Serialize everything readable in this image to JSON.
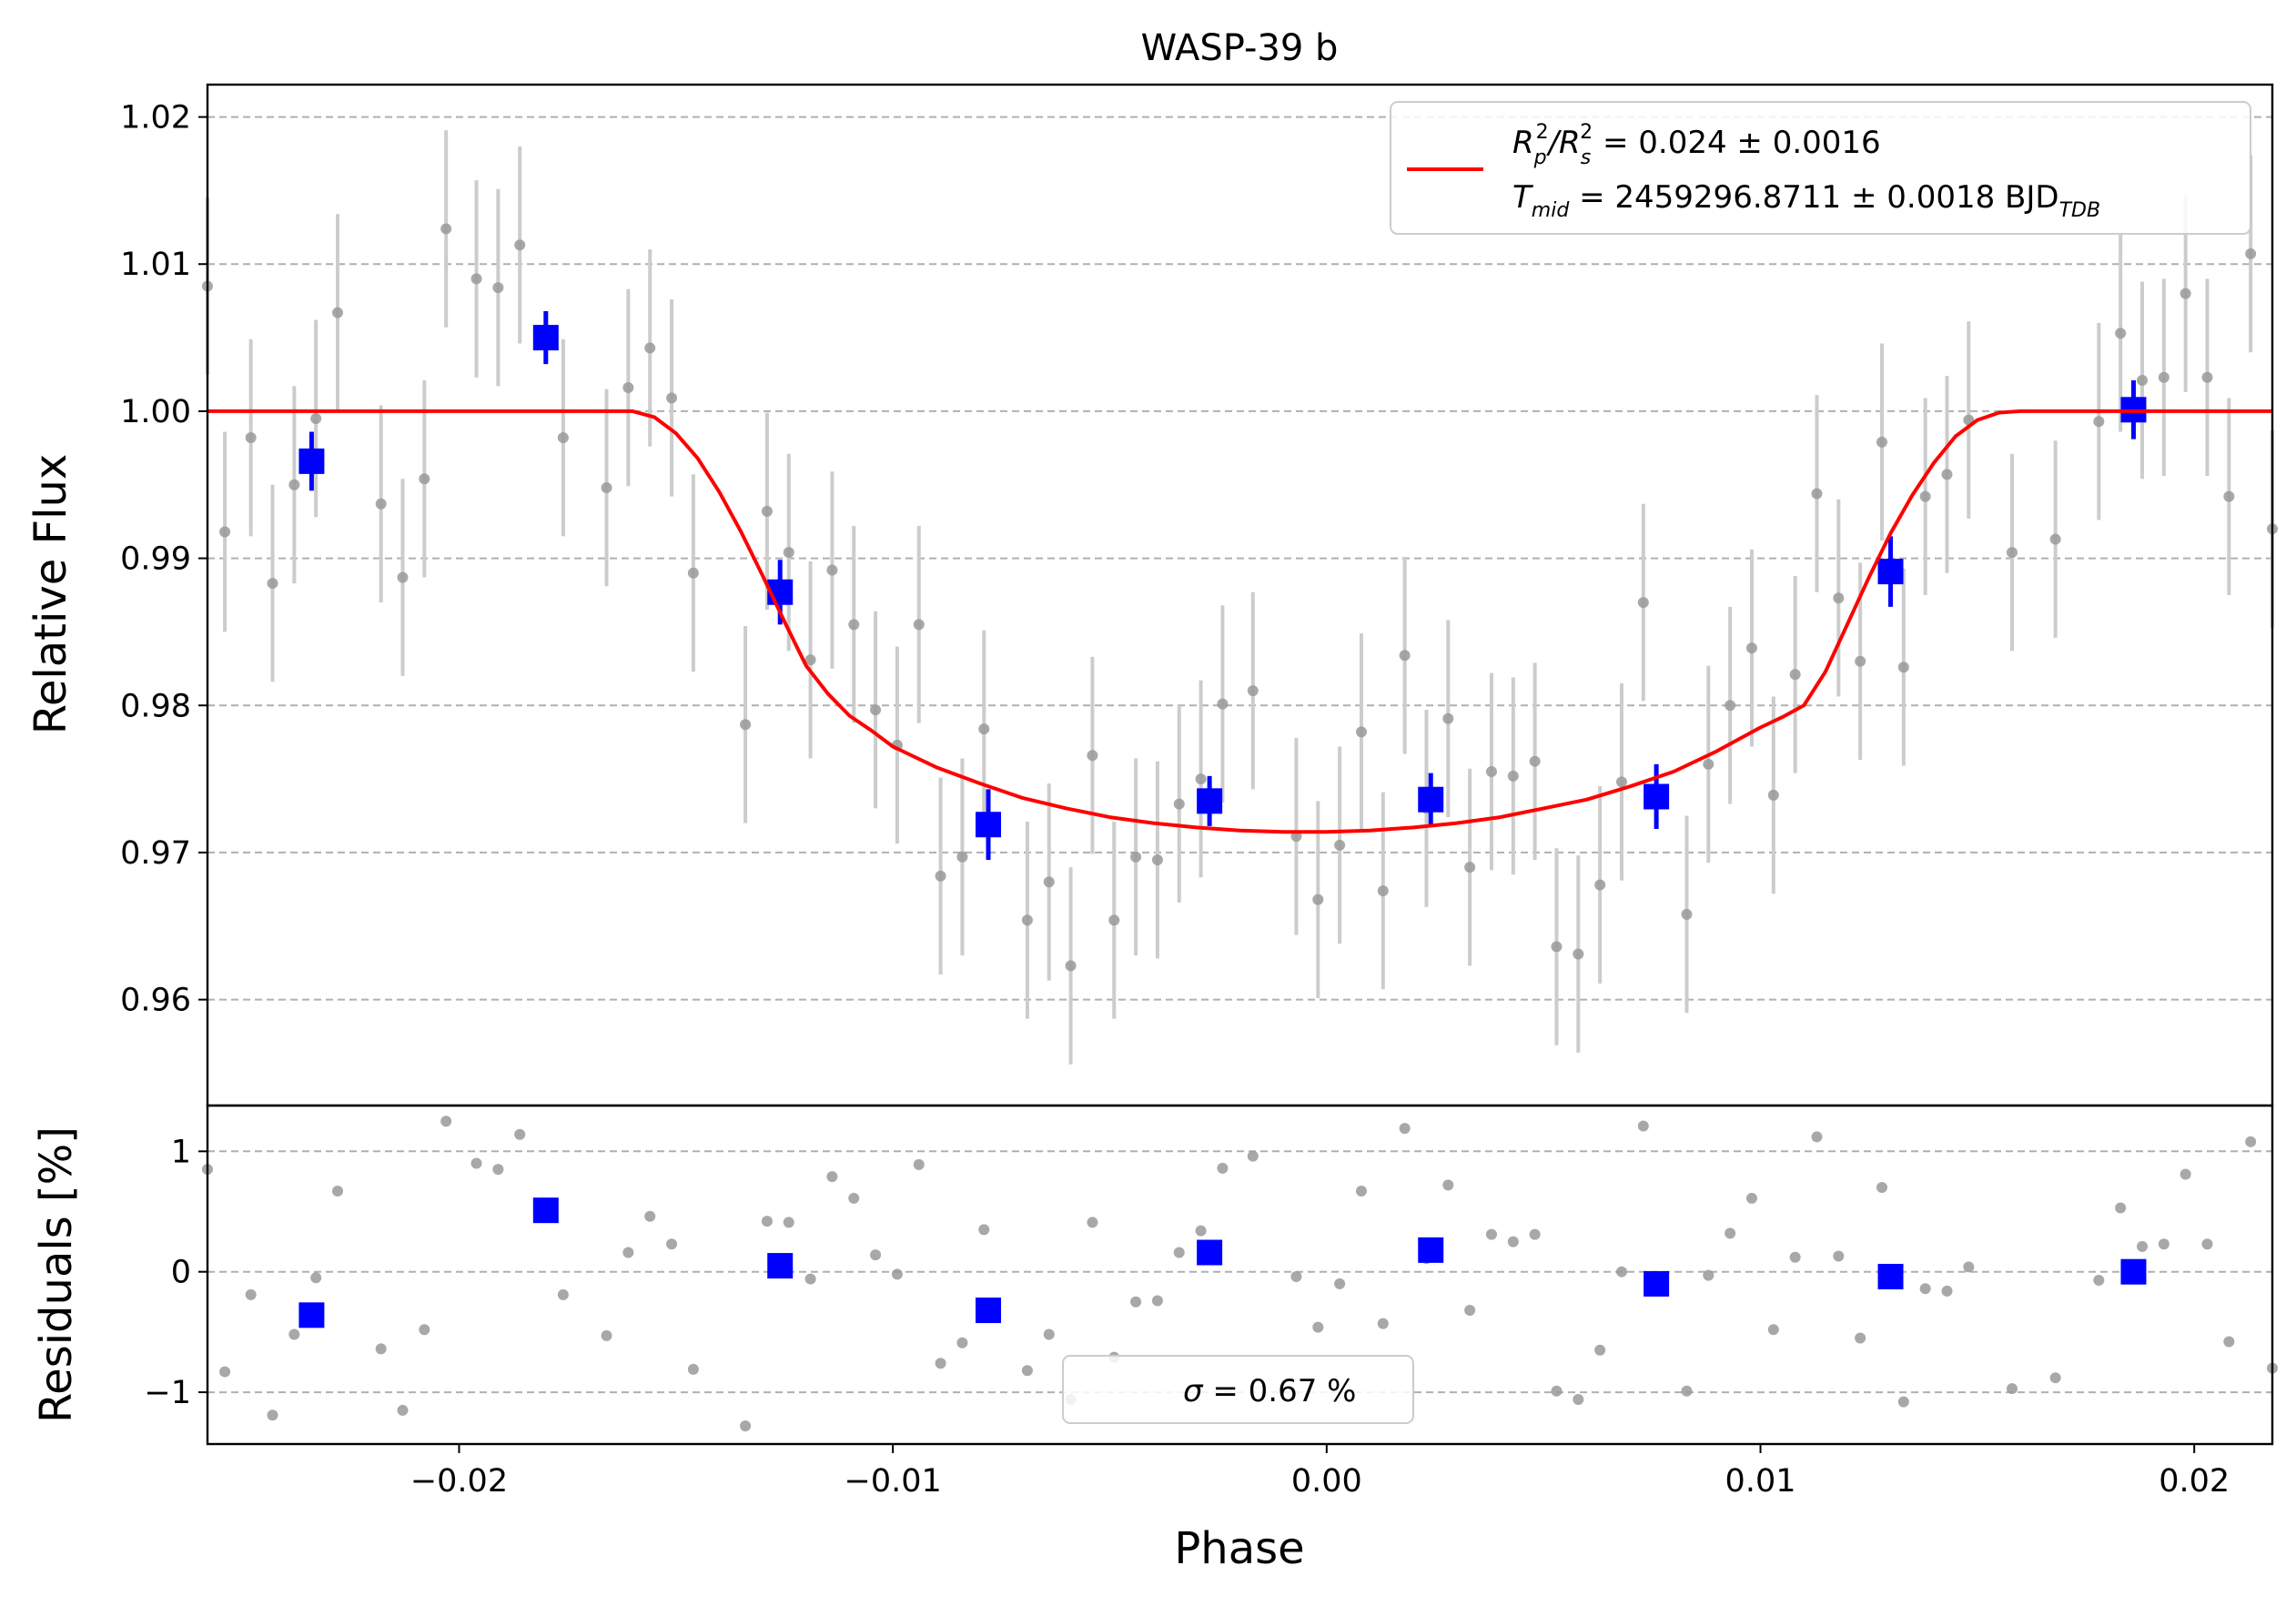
{
  "chart_data": {
    "type": "scatter",
    "title": "WASP-39 b",
    "xlabel": "Phase",
    "xlim": [
      -0.0258,
      0.0218
    ],
    "x_ticks": [
      {
        "value": -0.02,
        "label": "−0.02"
      },
      {
        "value": -0.01,
        "label": "−0.01"
      },
      {
        "value": 0.0,
        "label": "0.00"
      },
      {
        "value": 0.01,
        "label": "0.01"
      },
      {
        "value": 0.02,
        "label": "0.02"
      }
    ],
    "panels": {
      "flux": {
        "ylabel": "Relative Flux",
        "ylim": [
          0.9528,
          1.0222
        ],
        "y_ticks": [
          {
            "value": 0.96,
            "label": "0.96"
          },
          {
            "value": 0.97,
            "label": "0.97"
          },
          {
            "value": 0.98,
            "label": "0.98"
          },
          {
            "value": 0.99,
            "label": "0.99"
          },
          {
            "value": 1.0,
            "label": "1.00"
          },
          {
            "value": 1.01,
            "label": "1.01"
          },
          {
            "value": 1.02,
            "label": "1.02"
          }
        ],
        "grid": "horizontal dashed"
      },
      "residuals": {
        "ylabel": "Residuals [%]",
        "ylim": [
          -1.43,
          1.38
        ],
        "y_ticks": [
          {
            "value": -1,
            "label": "−1"
          },
          {
            "value": 0,
            "label": "0"
          },
          {
            "value": 1,
            "label": "1"
          }
        ],
        "grid": "horizontal dashed"
      }
    },
    "colors": {
      "raw": "#999999",
      "raw_errorbar": "#cccccc",
      "binned": "#0000ff",
      "model": "#ff0000",
      "grid": "#b0b0b0"
    },
    "legend": {
      "position": "top-right",
      "line1": {
        "prefix": "R",
        "sub1": "p",
        "sup1": "2",
        "slash": "/R",
        "sub2": "s",
        "sup2": "2",
        "rest": " = 0.024 ± 0.0016"
      },
      "line2": {
        "prefix": "T",
        "sub1": "mid",
        "rest": " = 2459296.8711 ± 0.0018 BJD",
        "sub2": "TDB"
      }
    },
    "residual_legend": {
      "position": "bottom-center",
      "sigma_symbol": "σ",
      "text": " = 0.67 %"
    },
    "model": {
      "name": "transit model",
      "x": [
        -0.0258,
        -0.016,
        -0.0155,
        -0.015,
        -0.0145,
        -0.014,
        -0.0135,
        -0.013,
        -0.0125,
        -0.012,
        -0.0115,
        -0.011,
        -0.0105,
        -0.01,
        -0.009,
        -0.008,
        -0.007,
        -0.006,
        -0.005,
        -0.004,
        -0.003,
        -0.002,
        -0.001,
        0.0,
        0.001,
        0.002,
        0.003,
        0.004,
        0.005,
        0.006,
        0.007,
        0.008,
        0.009,
        0.0095,
        0.01,
        0.0105,
        0.011,
        0.0115,
        0.012,
        0.0125,
        0.013,
        0.0135,
        0.014,
        0.0145,
        0.015,
        0.0155,
        0.016,
        0.0218
      ],
      "y": [
        1.0,
        1.0,
        0.9996,
        0.9985,
        0.9968,
        0.9945,
        0.9918,
        0.9888,
        0.9857,
        0.9827,
        0.9808,
        0.9793,
        0.9783,
        0.9772,
        0.9758,
        0.9747,
        0.9737,
        0.973,
        0.9724,
        0.972,
        0.9717,
        0.9715,
        0.9714,
        0.9714,
        0.9715,
        0.9717,
        0.972,
        0.9724,
        0.973,
        0.9736,
        0.9745,
        0.9755,
        0.9769,
        0.9777,
        0.9785,
        0.9792,
        0.98,
        0.9823,
        0.9855,
        0.9887,
        0.9917,
        0.9943,
        0.9965,
        0.9983,
        0.9994,
        0.9999,
        1.0,
        1.0
      ]
    },
    "raw_points": [
      {
        "x": -0.0258,
        "y": 1.0085,
        "err": 0.006,
        "res": 0.85
      },
      {
        "x": -0.0254,
        "y": 0.9918,
        "err": 0.0068,
        "res": -0.83
      },
      {
        "x": -0.0248,
        "y": 0.9982,
        "err": 0.0067,
        "res": -0.19
      },
      {
        "x": -0.0243,
        "y": 0.9883,
        "err": 0.0067,
        "res": -1.19
      },
      {
        "x": -0.0238,
        "y": 0.995,
        "err": 0.0067,
        "res": -0.52
      },
      {
        "x": -0.0233,
        "y": 0.9995,
        "err": 0.0067,
        "res": -0.05
      },
      {
        "x": -0.0228,
        "y": 1.0067,
        "err": 0.0067,
        "res": 0.67
      },
      {
        "x": -0.0218,
        "y": 0.9937,
        "err": 0.0067,
        "res": -0.64
      },
      {
        "x": -0.0213,
        "y": 0.9887,
        "err": 0.0067,
        "res": -1.15
      },
      {
        "x": -0.0208,
        "y": 0.9954,
        "err": 0.0067,
        "res": -0.48
      },
      {
        "x": -0.0203,
        "y": 1.0124,
        "err": 0.0067,
        "res": 1.25
      },
      {
        "x": -0.0196,
        "y": 1.009,
        "err": 0.0067,
        "res": 0.9
      },
      {
        "x": -0.0191,
        "y": 1.0084,
        "err": 0.0067,
        "res": 0.85
      },
      {
        "x": -0.0186,
        "y": 1.0113,
        "err": 0.0067,
        "res": 1.14
      },
      {
        "x": -0.0176,
        "y": 0.9982,
        "err": 0.0067,
        "res": -0.19
      },
      {
        "x": -0.0166,
        "y": 0.9948,
        "err": 0.0067,
        "res": -0.53
      },
      {
        "x": -0.0161,
        "y": 1.0016,
        "err": 0.0067,
        "res": 0.16
      },
      {
        "x": -0.0156,
        "y": 1.0043,
        "err": 0.0067,
        "res": 0.46
      },
      {
        "x": -0.0151,
        "y": 1.0009,
        "err": 0.0067,
        "res": 0.23
      },
      {
        "x": -0.0146,
        "y": 0.989,
        "err": 0.0067,
        "res": -0.81
      },
      {
        "x": -0.0134,
        "y": 0.9787,
        "err": 0.0067,
        "res": -1.28
      },
      {
        "x": -0.0129,
        "y": 0.9932,
        "err": 0.0067,
        "res": 0.42
      },
      {
        "x": -0.0124,
        "y": 0.9904,
        "err": 0.0067,
        "res": 0.41
      },
      {
        "x": -0.0119,
        "y": 0.9831,
        "err": 0.0067,
        "res": -0.06
      },
      {
        "x": -0.0114,
        "y": 0.9892,
        "err": 0.0067,
        "res": 0.79
      },
      {
        "x": -0.0109,
        "y": 0.9855,
        "err": 0.0067,
        "res": 0.61
      },
      {
        "x": -0.0104,
        "y": 0.9797,
        "err": 0.0067,
        "res": 0.14
      },
      {
        "x": -0.0099,
        "y": 0.9773,
        "err": 0.0067,
        "res": -0.02
      },
      {
        "x": -0.0094,
        "y": 0.9855,
        "err": 0.0067,
        "res": 0.89
      },
      {
        "x": -0.0089,
        "y": 0.9684,
        "err": 0.0067,
        "res": -0.76
      },
      {
        "x": -0.0084,
        "y": 0.9697,
        "err": 0.0067,
        "res": -0.59
      },
      {
        "x": -0.0079,
        "y": 0.9784,
        "err": 0.0067,
        "res": 0.35
      },
      {
        "x": -0.0069,
        "y": 0.9654,
        "err": 0.0067,
        "res": -0.82
      },
      {
        "x": -0.0064,
        "y": 0.968,
        "err": 0.0067,
        "res": -0.52
      },
      {
        "x": -0.0059,
        "y": 0.9623,
        "err": 0.0067,
        "res": -1.06
      },
      {
        "x": -0.0054,
        "y": 0.9766,
        "err": 0.0067,
        "res": 0.41
      },
      {
        "x": -0.0049,
        "y": 0.9654,
        "err": 0.0067,
        "res": -0.71
      },
      {
        "x": -0.0044,
        "y": 0.9697,
        "err": 0.0067,
        "res": -0.25
      },
      {
        "x": -0.0039,
        "y": 0.9695,
        "err": 0.0067,
        "res": -0.24
      },
      {
        "x": -0.0034,
        "y": 0.9733,
        "err": 0.0067,
        "res": 0.16
      },
      {
        "x": -0.0029,
        "y": 0.975,
        "err": 0.0067,
        "res": 0.34
      },
      {
        "x": -0.0024,
        "y": 0.9801,
        "err": 0.0067,
        "res": 0.86
      },
      {
        "x": -0.0017,
        "y": 0.981,
        "err": 0.0067,
        "res": 0.96
      },
      {
        "x": -0.0007,
        "y": 0.9711,
        "err": 0.0067,
        "res": -0.04
      },
      {
        "x": -0.0002,
        "y": 0.9668,
        "err": 0.0067,
        "res": -0.46
      },
      {
        "x": 0.0003,
        "y": 0.9705,
        "err": 0.0067,
        "res": -0.1
      },
      {
        "x": 0.0008,
        "y": 0.9782,
        "err": 0.0067,
        "res": 0.67
      },
      {
        "x": 0.0013,
        "y": 0.9674,
        "err": 0.0067,
        "res": -0.43
      },
      {
        "x": 0.0018,
        "y": 0.9834,
        "err": 0.0067,
        "res": 1.19
      },
      {
        "x": 0.0023,
        "y": 0.973,
        "err": 0.0067,
        "res": 0.11
      },
      {
        "x": 0.0028,
        "y": 0.9791,
        "err": 0.0067,
        "res": 0.72
      },
      {
        "x": 0.0033,
        "y": 0.969,
        "err": 0.0067,
        "res": -0.32
      },
      {
        "x": 0.0038,
        "y": 0.9755,
        "err": 0.0067,
        "res": 0.31
      },
      {
        "x": 0.0043,
        "y": 0.9752,
        "err": 0.0067,
        "res": 0.25
      },
      {
        "x": 0.0048,
        "y": 0.9762,
        "err": 0.0067,
        "res": 0.31
      },
      {
        "x": 0.0053,
        "y": 0.9636,
        "err": 0.0067,
        "res": -0.99
      },
      {
        "x": 0.0058,
        "y": 0.9631,
        "err": 0.0067,
        "res": -1.06
      },
      {
        "x": 0.0063,
        "y": 0.9678,
        "err": 0.0067,
        "res": -0.65
      },
      {
        "x": 0.0068,
        "y": 0.9748,
        "err": 0.0067,
        "res": 0.0
      },
      {
        "x": 0.0073,
        "y": 0.987,
        "err": 0.0067,
        "res": 1.21
      },
      {
        "x": 0.0083,
        "y": 0.9658,
        "err": 0.0067,
        "res": -0.99
      },
      {
        "x": 0.0088,
        "y": 0.976,
        "err": 0.0067,
        "res": -0.03
      },
      {
        "x": 0.0093,
        "y": 0.98,
        "err": 0.0067,
        "res": 0.32
      },
      {
        "x": 0.0098,
        "y": 0.9839,
        "err": 0.0067,
        "res": 0.61
      },
      {
        "x": 0.0103,
        "y": 0.9739,
        "err": 0.0067,
        "res": -0.48
      },
      {
        "x": 0.0108,
        "y": 0.9821,
        "err": 0.0067,
        "res": 0.12
      },
      {
        "x": 0.0113,
        "y": 0.9944,
        "err": 0.0067,
        "res": 1.12
      },
      {
        "x": 0.0118,
        "y": 0.9873,
        "err": 0.0067,
        "res": 0.13
      },
      {
        "x": 0.0123,
        "y": 0.983,
        "err": 0.0067,
        "res": -0.55
      },
      {
        "x": 0.0128,
        "y": 0.9979,
        "err": 0.0067,
        "res": 0.7
      },
      {
        "x": 0.0133,
        "y": 0.9826,
        "err": 0.0067,
        "res": -1.08
      },
      {
        "x": 0.0138,
        "y": 0.9942,
        "err": 0.0067,
        "res": -0.14
      },
      {
        "x": 0.0143,
        "y": 0.9957,
        "err": 0.0067,
        "res": -0.16
      },
      {
        "x": 0.0148,
        "y": 0.9994,
        "err": 0.0067,
        "res": 0.04
      },
      {
        "x": 0.0158,
        "y": 0.9904,
        "err": 0.0067,
        "res": -0.97
      },
      {
        "x": 0.0168,
        "y": 0.9913,
        "err": 0.0067,
        "res": -0.88
      },
      {
        "x": 0.0178,
        "y": 0.9993,
        "err": 0.0067,
        "res": -0.07
      },
      {
        "x": 0.0183,
        "y": 1.0053,
        "err": 0.0067,
        "res": 0.53
      },
      {
        "x": 0.0188,
        "y": 1.0021,
        "err": 0.0067,
        "res": 0.21
      },
      {
        "x": 0.0193,
        "y": 1.0023,
        "err": 0.0067,
        "res": 0.23
      },
      {
        "x": 0.0198,
        "y": 1.008,
        "err": 0.0067,
        "res": 0.81
      },
      {
        "x": 0.0203,
        "y": 1.0023,
        "err": 0.0067,
        "res": 0.23
      },
      {
        "x": 0.0208,
        "y": 0.9942,
        "err": 0.0067,
        "res": -0.58
      },
      {
        "x": 0.0213,
        "y": 1.0107,
        "err": 0.0067,
        "res": 1.08
      },
      {
        "x": 0.0218,
        "y": 0.992,
        "err": 0.0067,
        "res": -0.8
      }
    ],
    "binned_points": [
      {
        "x": -0.0234,
        "y": 0.9966,
        "err": 0.002,
        "res": -0.36
      },
      {
        "x": -0.018,
        "y": 1.005,
        "err": 0.0018,
        "res": 0.51
      },
      {
        "x": -0.0126,
        "y": 0.9877,
        "err": 0.0022,
        "res": 0.05
      },
      {
        "x": -0.0078,
        "y": 0.9719,
        "err": 0.0024,
        "res": -0.32
      },
      {
        "x": -0.0027,
        "y": 0.9735,
        "err": 0.0017,
        "res": 0.16
      },
      {
        "x": 0.0024,
        "y": 0.9736,
        "err": 0.0018,
        "res": 0.18
      },
      {
        "x": 0.0076,
        "y": 0.9738,
        "err": 0.0022,
        "res": -0.1
      },
      {
        "x": 0.013,
        "y": 0.9891,
        "err": 0.0024,
        "res": -0.04
      },
      {
        "x": 0.0186,
        "y": 1.0001,
        "err": 0.002,
        "res": 0.0
      }
    ]
  }
}
